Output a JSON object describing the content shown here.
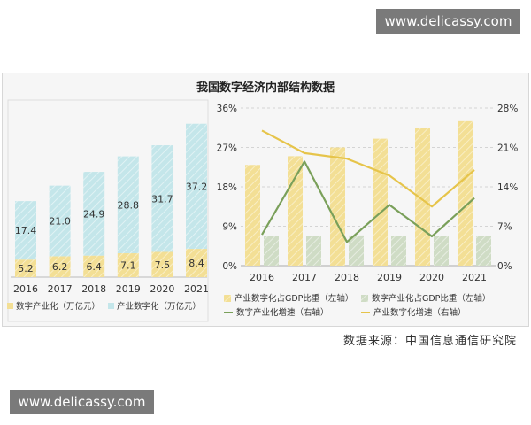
{
  "watermark": {
    "top": "www.delicassy.com",
    "bottom": "www.delicassy.com"
  },
  "title": "我国数字经济内部结构数据",
  "source": "数据来源：中国信息通信研究院",
  "colors": {
    "yellow": "#f3df95",
    "yellow_line": "#e6c44a",
    "cyan": "#c4e6ea",
    "green": "#cfdcc5",
    "green_line": "#7aa05a"
  },
  "chart_data": [
    {
      "type": "bar",
      "stacked": true,
      "categories": [
        "2016",
        "2017",
        "2018",
        "2019",
        "2020",
        "2021"
      ],
      "series": [
        {
          "name": "数字产业化（万亿元）",
          "values": [
            5.2,
            6.2,
            6.4,
            7.1,
            7.5,
            8.4
          ],
          "color": "#f3df95"
        },
        {
          "name": "产业数字化（万亿元）",
          "values": [
            17.4,
            21.0,
            24.9,
            28.8,
            31.7,
            37.2
          ],
          "color": "#c4e6ea"
        }
      ],
      "value_labels": {
        "bottom": [
          "5.2",
          "6.2",
          "6.4",
          "7.1",
          "7.5",
          "8.4"
        ],
        "top": [
          "17.4",
          "21.0",
          "24.9",
          "28.8",
          "31.7",
          "37.2"
        ]
      },
      "legend": "bottom"
    },
    {
      "type": "bar+line",
      "categories": [
        "2016",
        "2017",
        "2018",
        "2019",
        "2020",
        "2021"
      ],
      "left_axis": {
        "ticks": [
          "0%",
          "9%",
          "18%",
          "27%",
          "36%"
        ],
        "range": [
          0,
          36
        ]
      },
      "right_axis": {
        "ticks": [
          "0%",
          "7%",
          "14%",
          "21%",
          "28%"
        ],
        "range": [
          0,
          28
        ]
      },
      "bars": [
        {
          "name": "产业数字化占GDP比重（左轴）",
          "values": [
            23.0,
            25.0,
            27.0,
            29.0,
            31.5,
            33.0
          ],
          "color": "#f3df95"
        },
        {
          "name": "数字产业化占GDP比重（左轴）",
          "values": [
            6.8,
            6.8,
            6.9,
            6.8,
            6.8,
            6.8
          ],
          "color": "#cfdcc5"
        }
      ],
      "lines": [
        {
          "name": "数字产业化增速（右轴）",
          "values": [
            5.5,
            18.5,
            4.2,
            10.8,
            5.2,
            12.0
          ],
          "color": "#7aa05a"
        },
        {
          "name": "产业数字化增速（右轴）",
          "values": [
            24.0,
            20.0,
            19.0,
            16.0,
            10.5,
            17.0
          ],
          "color": "#e6c44a"
        }
      ],
      "legend": "bottom"
    }
  ]
}
